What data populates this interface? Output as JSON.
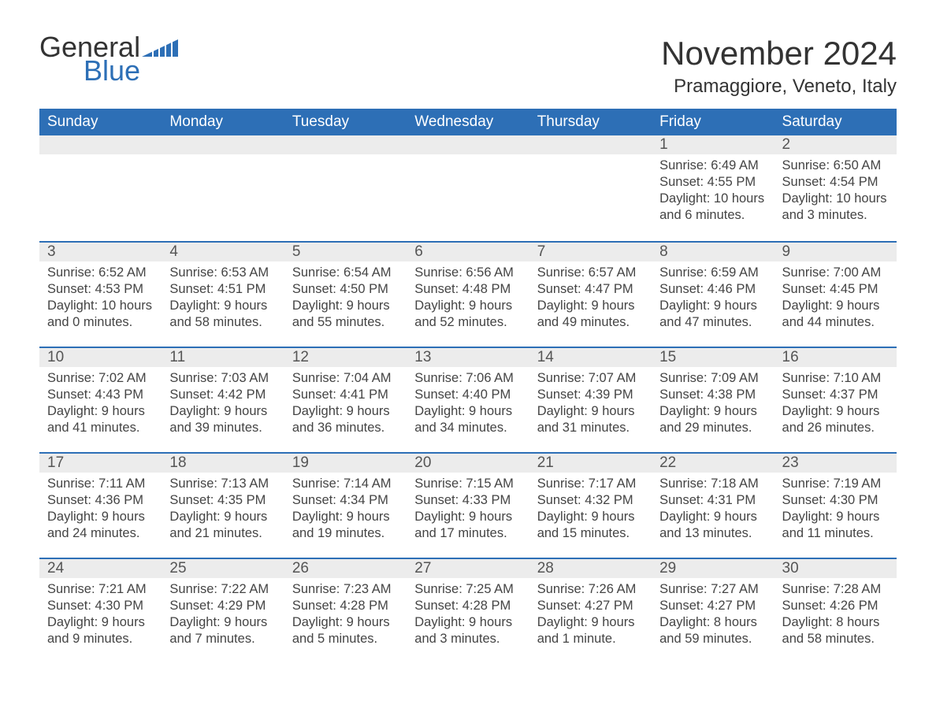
{
  "logo": {
    "word1": "General",
    "word2": "Blue",
    "icon_color": "#2d6fb6"
  },
  "header": {
    "month_title": "November 2024",
    "location": "Pramaggiore, Veneto, Italy"
  },
  "colors": {
    "header_bg": "#2d6fb6",
    "header_text": "#ffffff",
    "day_bar_bg": "#ececec",
    "day_bar_border": "#2d6fb6",
    "body_text": "#444444",
    "background": "#ffffff"
  },
  "fonts": {
    "base_family": "Arial",
    "title_size_pt": 32,
    "location_size_pt": 18,
    "th_size_pt": 14,
    "body_size_pt": 12
  },
  "week_days": [
    "Sunday",
    "Monday",
    "Tuesday",
    "Wednesday",
    "Thursday",
    "Friday",
    "Saturday"
  ],
  "weeks": [
    [
      {
        "empty": true
      },
      {
        "empty": true
      },
      {
        "empty": true
      },
      {
        "empty": true
      },
      {
        "empty": true
      },
      {
        "day": "1",
        "sunrise": "Sunrise: 6:49 AM",
        "sunset": "Sunset: 4:55 PM",
        "daylight": "Daylight: 10 hours and 6 minutes."
      },
      {
        "day": "2",
        "sunrise": "Sunrise: 6:50 AM",
        "sunset": "Sunset: 4:54 PM",
        "daylight": "Daylight: 10 hours and 3 minutes."
      }
    ],
    [
      {
        "day": "3",
        "sunrise": "Sunrise: 6:52 AM",
        "sunset": "Sunset: 4:53 PM",
        "daylight": "Daylight: 10 hours and 0 minutes."
      },
      {
        "day": "4",
        "sunrise": "Sunrise: 6:53 AM",
        "sunset": "Sunset: 4:51 PM",
        "daylight": "Daylight: 9 hours and 58 minutes."
      },
      {
        "day": "5",
        "sunrise": "Sunrise: 6:54 AM",
        "sunset": "Sunset: 4:50 PM",
        "daylight": "Daylight: 9 hours and 55 minutes."
      },
      {
        "day": "6",
        "sunrise": "Sunrise: 6:56 AM",
        "sunset": "Sunset: 4:48 PM",
        "daylight": "Daylight: 9 hours and 52 minutes."
      },
      {
        "day": "7",
        "sunrise": "Sunrise: 6:57 AM",
        "sunset": "Sunset: 4:47 PM",
        "daylight": "Daylight: 9 hours and 49 minutes."
      },
      {
        "day": "8",
        "sunrise": "Sunrise: 6:59 AM",
        "sunset": "Sunset: 4:46 PM",
        "daylight": "Daylight: 9 hours and 47 minutes."
      },
      {
        "day": "9",
        "sunrise": "Sunrise: 7:00 AM",
        "sunset": "Sunset: 4:45 PM",
        "daylight": "Daylight: 9 hours and 44 minutes."
      }
    ],
    [
      {
        "day": "10",
        "sunrise": "Sunrise: 7:02 AM",
        "sunset": "Sunset: 4:43 PM",
        "daylight": "Daylight: 9 hours and 41 minutes."
      },
      {
        "day": "11",
        "sunrise": "Sunrise: 7:03 AM",
        "sunset": "Sunset: 4:42 PM",
        "daylight": "Daylight: 9 hours and 39 minutes."
      },
      {
        "day": "12",
        "sunrise": "Sunrise: 7:04 AM",
        "sunset": "Sunset: 4:41 PM",
        "daylight": "Daylight: 9 hours and 36 minutes."
      },
      {
        "day": "13",
        "sunrise": "Sunrise: 7:06 AM",
        "sunset": "Sunset: 4:40 PM",
        "daylight": "Daylight: 9 hours and 34 minutes."
      },
      {
        "day": "14",
        "sunrise": "Sunrise: 7:07 AM",
        "sunset": "Sunset: 4:39 PM",
        "daylight": "Daylight: 9 hours and 31 minutes."
      },
      {
        "day": "15",
        "sunrise": "Sunrise: 7:09 AM",
        "sunset": "Sunset: 4:38 PM",
        "daylight": "Daylight: 9 hours and 29 minutes."
      },
      {
        "day": "16",
        "sunrise": "Sunrise: 7:10 AM",
        "sunset": "Sunset: 4:37 PM",
        "daylight": "Daylight: 9 hours and 26 minutes."
      }
    ],
    [
      {
        "day": "17",
        "sunrise": "Sunrise: 7:11 AM",
        "sunset": "Sunset: 4:36 PM",
        "daylight": "Daylight: 9 hours and 24 minutes."
      },
      {
        "day": "18",
        "sunrise": "Sunrise: 7:13 AM",
        "sunset": "Sunset: 4:35 PM",
        "daylight": "Daylight: 9 hours and 21 minutes."
      },
      {
        "day": "19",
        "sunrise": "Sunrise: 7:14 AM",
        "sunset": "Sunset: 4:34 PM",
        "daylight": "Daylight: 9 hours and 19 minutes."
      },
      {
        "day": "20",
        "sunrise": "Sunrise: 7:15 AM",
        "sunset": "Sunset: 4:33 PM",
        "daylight": "Daylight: 9 hours and 17 minutes."
      },
      {
        "day": "21",
        "sunrise": "Sunrise: 7:17 AM",
        "sunset": "Sunset: 4:32 PM",
        "daylight": "Daylight: 9 hours and 15 minutes."
      },
      {
        "day": "22",
        "sunrise": "Sunrise: 7:18 AM",
        "sunset": "Sunset: 4:31 PM",
        "daylight": "Daylight: 9 hours and 13 minutes."
      },
      {
        "day": "23",
        "sunrise": "Sunrise: 7:19 AM",
        "sunset": "Sunset: 4:30 PM",
        "daylight": "Daylight: 9 hours and 11 minutes."
      }
    ],
    [
      {
        "day": "24",
        "sunrise": "Sunrise: 7:21 AM",
        "sunset": "Sunset: 4:30 PM",
        "daylight": "Daylight: 9 hours and 9 minutes."
      },
      {
        "day": "25",
        "sunrise": "Sunrise: 7:22 AM",
        "sunset": "Sunset: 4:29 PM",
        "daylight": "Daylight: 9 hours and 7 minutes."
      },
      {
        "day": "26",
        "sunrise": "Sunrise: 7:23 AM",
        "sunset": "Sunset: 4:28 PM",
        "daylight": "Daylight: 9 hours and 5 minutes."
      },
      {
        "day": "27",
        "sunrise": "Sunrise: 7:25 AM",
        "sunset": "Sunset: 4:28 PM",
        "daylight": "Daylight: 9 hours and 3 minutes."
      },
      {
        "day": "28",
        "sunrise": "Sunrise: 7:26 AM",
        "sunset": "Sunset: 4:27 PM",
        "daylight": "Daylight: 9 hours and 1 minute."
      },
      {
        "day": "29",
        "sunrise": "Sunrise: 7:27 AM",
        "sunset": "Sunset: 4:27 PM",
        "daylight": "Daylight: 8 hours and 59 minutes."
      },
      {
        "day": "30",
        "sunrise": "Sunrise: 7:28 AM",
        "sunset": "Sunset: 4:26 PM",
        "daylight": "Daylight: 8 hours and 58 minutes."
      }
    ]
  ]
}
